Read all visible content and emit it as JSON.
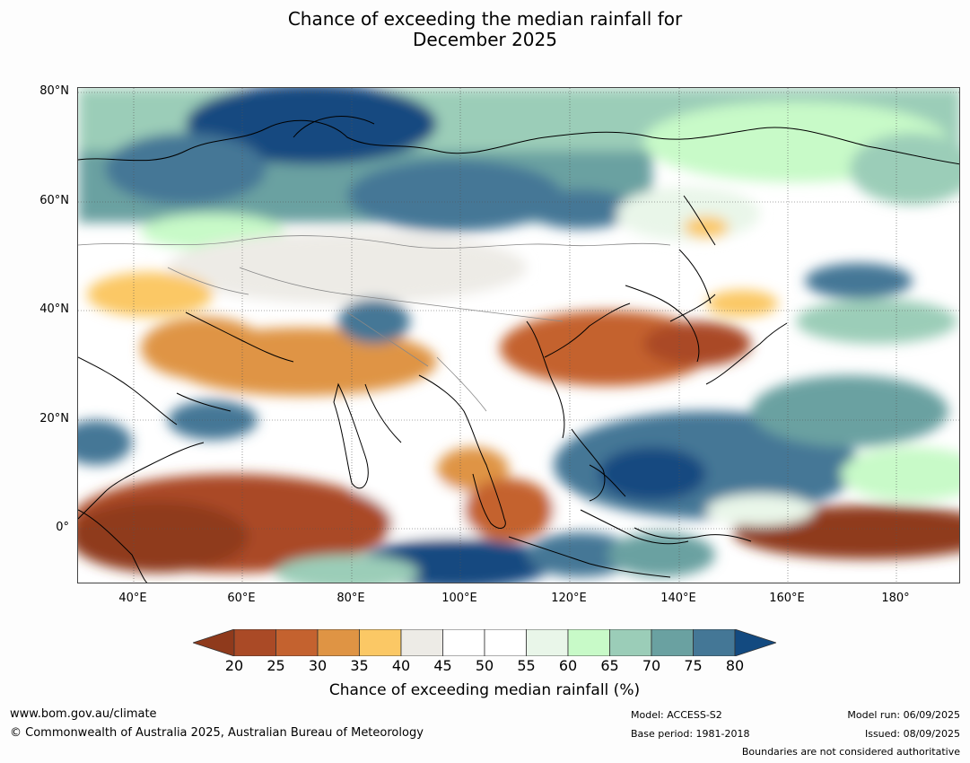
{
  "title": {
    "line1": "Chance of exceeding the median rainfall for",
    "line2": "December 2025"
  },
  "map": {
    "latitude_labels": [
      "80°N",
      "60°N",
      "40°N",
      "20°N",
      "0°"
    ],
    "longitude_labels": [
      "40°E",
      "60°E",
      "80°E",
      "100°E",
      "120°E",
      "140°E",
      "160°E",
      "180°"
    ]
  },
  "colorbar": {
    "ticks": [
      "20",
      "25",
      "30",
      "35",
      "40",
      "45",
      "50",
      "55",
      "60",
      "65",
      "70",
      "75",
      "80"
    ],
    "colors": {
      "below_20": "#8f3a1c",
      "20_25": "#aa4a26",
      "25_30": "#c4622f",
      "30_35": "#df9444",
      "35_40": "#fbc865",
      "40_45": "#edebe6",
      "45_50": "#ffffff",
      "50_55": "#ffffff",
      "55_60": "#e9f6e9",
      "60_65": "#c8fac8",
      "65_70": "#9bcdb8",
      "70_75": "#6aa1a1",
      "75_80": "#447796",
      "above_80": "#134a80"
    },
    "label": "Chance of exceeding median rainfall (%)"
  },
  "footer": {
    "website": "www.bom.gov.au/climate",
    "copyright": "© Commonwealth of Australia 2025, Australian Bureau of Meteorology",
    "model": "Model: ACCESS-S2",
    "base_period": "Base period: 1981-2018",
    "model_run": "Model run: 06/09/2025",
    "issued": "Issued: 08/09/2025",
    "disclaimer": "Boundaries are not considered authoritative"
  }
}
